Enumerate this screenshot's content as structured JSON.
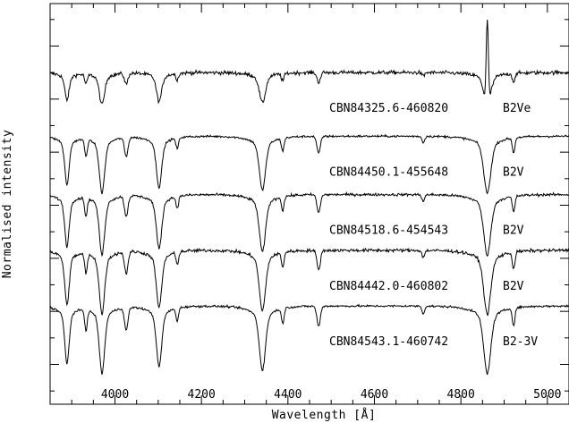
{
  "chart_data": {
    "type": "line",
    "xlabel": "Wavelength [Å]",
    "ylabel": "Normalised intensity",
    "xlim": [
      3850,
      5050
    ],
    "x_ticks": [
      4000,
      4200,
      4400,
      4600,
      4800,
      5000
    ],
    "grid": false,
    "lines": [
      {
        "id": "H-epsilon",
        "wavelength": 3970,
        "depth": 1.0,
        "width": 6
      },
      {
        "id": "H-zeta",
        "wavelength": 3889,
        "depth": 0.85,
        "width": 5
      },
      {
        "id": "H-delta",
        "wavelength": 4102,
        "depth": 0.9,
        "width": 6
      },
      {
        "id": "H-gamma",
        "wavelength": 4341,
        "depth": 0.95,
        "width": 7
      },
      {
        "id": "H-beta",
        "wavelength": 4861,
        "depth": 1.0,
        "width": 8
      },
      {
        "id": "He-I-4026",
        "wavelength": 4026,
        "depth": 0.45,
        "width": 4
      },
      {
        "id": "He-I-4144",
        "wavelength": 4144,
        "depth": 0.25,
        "width": 3
      },
      {
        "id": "He-I-4388",
        "wavelength": 4388,
        "depth": 0.3,
        "width": 3
      },
      {
        "id": "He-I-4471",
        "wavelength": 4471,
        "depth": 0.4,
        "width": 4
      },
      {
        "id": "He-I-4713",
        "wavelength": 4713,
        "depth": 0.15,
        "width": 3
      },
      {
        "id": "He-I-4922",
        "wavelength": 4922,
        "depth": 0.35,
        "width": 3
      },
      {
        "id": "Ca-II-K",
        "wavelength": 3933,
        "depth": 0.4,
        "width": 3
      }
    ],
    "series": [
      {
        "name": "CBN84325.6-460820",
        "spectral_type": "B2Ve",
        "continuum_level": 6.5,
        "depth_scale": 0.45,
        "noise": 0.035,
        "h_beta_emission": 1.6
      },
      {
        "name": "CBN84450.1-455648",
        "spectral_type": "B2V",
        "continuum_level": 5.3,
        "depth_scale": 0.8,
        "noise": 0.02
      },
      {
        "name": "CBN84518.6-454543",
        "spectral_type": "B2V",
        "continuum_level": 4.2,
        "depth_scale": 0.85,
        "noise": 0.025
      },
      {
        "name": "CBN84442.0-460802",
        "spectral_type": "B2V",
        "continuum_level": 3.15,
        "depth_scale": 0.9,
        "noise": 0.03
      },
      {
        "name": "CBN84543.1-460742",
        "spectral_type": "B2-3V",
        "continuum_level": 2.1,
        "depth_scale": 0.95,
        "noise": 0.02
      }
    ]
  }
}
